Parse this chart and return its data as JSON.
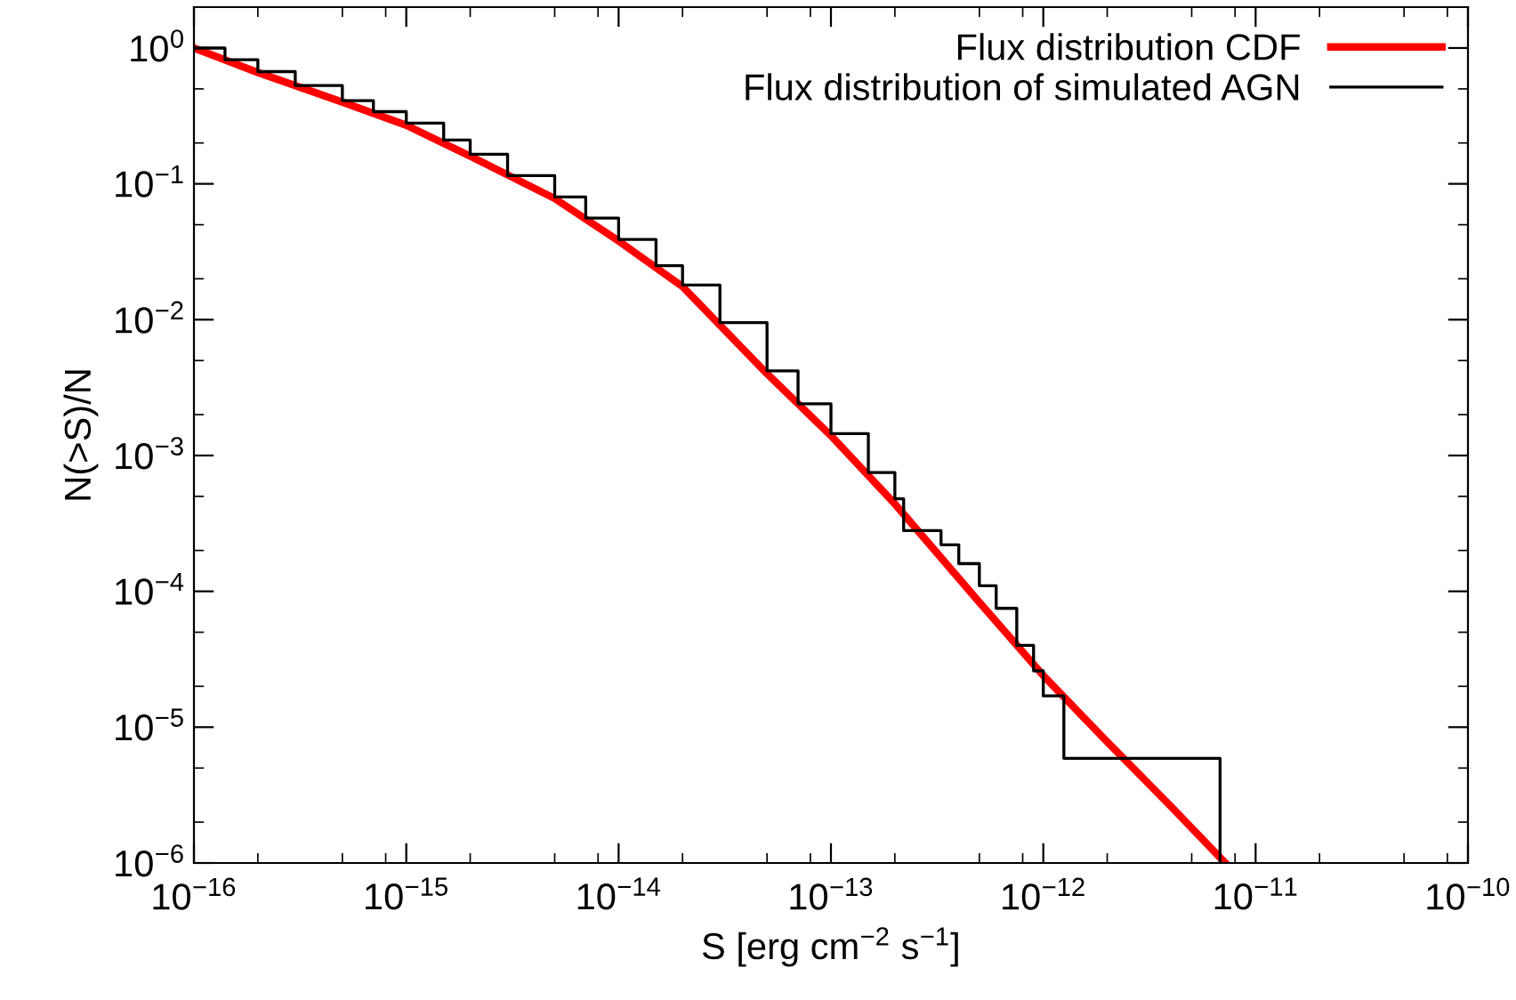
{
  "chart_data": {
    "type": "line",
    "xlabel": "S [erg cm$^{−2}$ s$^{−1}$]",
    "ylabel": "N(>S)/N",
    "log": "xy",
    "xlim": [
      1e-16,
      1e-10
    ],
    "ylim": [
      1e-06,
      2
    ],
    "xticks": [
      {
        "value": 1e-16,
        "label": "10$^{−16}$"
      },
      {
        "value": 1e-15,
        "label": "10$^{−15}$"
      },
      {
        "value": 1e-14,
        "label": "10$^{−14}$"
      },
      {
        "value": 1e-13,
        "label": "10$^{−13}$"
      },
      {
        "value": 1e-12,
        "label": "10$^{−12}$"
      },
      {
        "value": 1e-11,
        "label": "10$^{−11}$"
      },
      {
        "value": 1e-10,
        "label": "10$^{−10}$"
      }
    ],
    "yticks": [
      {
        "value": 1e-06,
        "label": "10$^{−6}$"
      },
      {
        "value": 1e-05,
        "label": "10$^{−5}$"
      },
      {
        "value": 0.0001,
        "label": "10$^{−4}$"
      },
      {
        "value": 0.001,
        "label": "10$^{−3}$"
      },
      {
        "value": 0.01,
        "label": "10$^{−2}$"
      },
      {
        "value": 0.1,
        "label": "10$^{−1}$"
      },
      {
        "value": 1,
        "label": "10$^{0}$"
      }
    ],
    "grid": false,
    "legend": "top right",
    "series": [
      {
        "name": "Flux distribution CDF",
        "color": "#ff0000",
        "x": [
          1e-16,
          2e-16,
          5e-16,
          1e-15,
          2e-15,
          5e-15,
          1e-14,
          2e-14,
          5e-14,
          1e-13,
          2e-13,
          5e-13,
          1e-12,
          2e-12,
          4e-12,
          7.2e-12
        ],
        "values": [
          1.0,
          0.66,
          0.4,
          0.27,
          0.16,
          0.078,
          0.038,
          0.0175,
          0.004,
          0.0014,
          0.00044,
          8.3e-05,
          2.4e-05,
          7.8e-06,
          2.6e-06,
          1e-06
        ]
      },
      {
        "name": "Flux distribution of simulated AGN",
        "type": "step",
        "color": "#000000",
        "x": [
          1e-16,
          1.4e-16,
          2e-16,
          3e-16,
          5e-16,
          7e-16,
          1e-15,
          1.5e-15,
          2e-15,
          3e-15,
          5e-15,
          7e-15,
          1e-14,
          1.5e-14,
          2e-14,
          3e-14,
          5e-14,
          7e-14,
          1e-13,
          1.5e-13,
          2e-13,
          2.2e-13,
          3.3e-13,
          4e-13,
          5e-13,
          6e-13,
          7.5e-13,
          9e-13,
          1e-12,
          1.25e-12,
          6.8e-12
        ],
        "values": [
          1.0,
          0.82,
          0.67,
          0.53,
          0.41,
          0.34,
          0.28,
          0.21,
          0.165,
          0.115,
          0.08,
          0.056,
          0.039,
          0.025,
          0.018,
          0.0095,
          0.0042,
          0.0024,
          0.00145,
          0.00075,
          0.00048,
          0.00028,
          0.00022,
          0.00016,
          0.00011,
          7.5e-05,
          4e-05,
          2.6e-05,
          1.7e-05,
          5.9e-06,
          1e-06
        ]
      }
    ]
  }
}
